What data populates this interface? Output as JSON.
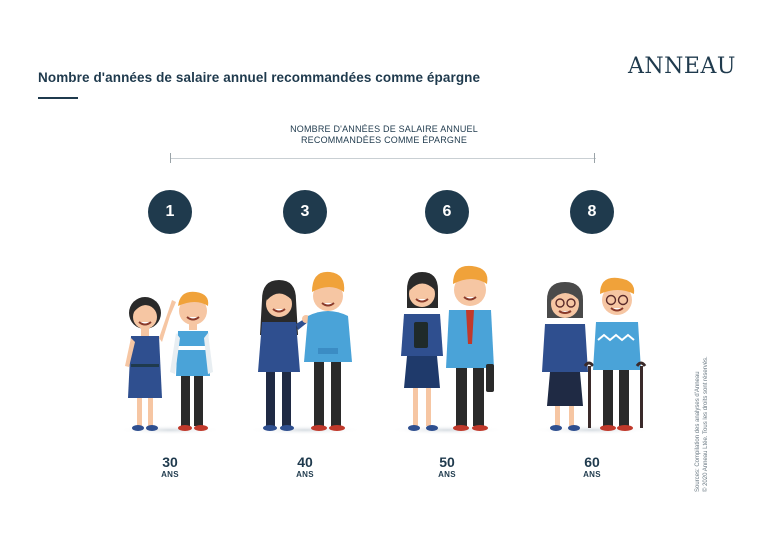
{
  "header": {
    "title": "Nombre d'années de salaire annuel recommandées comme épargne",
    "logo_text": "ANNEAU"
  },
  "timeline": {
    "caption_line1": "NOMBRE D'ANNÉES DE SALAIRE ANNUEL",
    "caption_line2": "RECOMMANDÉES COMME ÉPARGNE"
  },
  "stages": [
    {
      "years": "1",
      "age": "30",
      "unit": "ANS"
    },
    {
      "years": "3",
      "age": "40",
      "unit": "ANS"
    },
    {
      "years": "6",
      "age": "50",
      "unit": "ANS"
    },
    {
      "years": "8",
      "age": "60",
      "unit": "ANS"
    }
  ],
  "footer": {
    "source_line1": "Sources: Compilation des analyses d'Anneau",
    "source_line2": "© 2020 Anneau Ltée. Tous les droits sont réservés."
  },
  "colors": {
    "navy": "#1f3a4d",
    "dress_blue": "#2f4f8f",
    "sky_blue": "#4aa3d8",
    "hair_orange": "#f0a23a",
    "skin": "#f6c6a3"
  }
}
